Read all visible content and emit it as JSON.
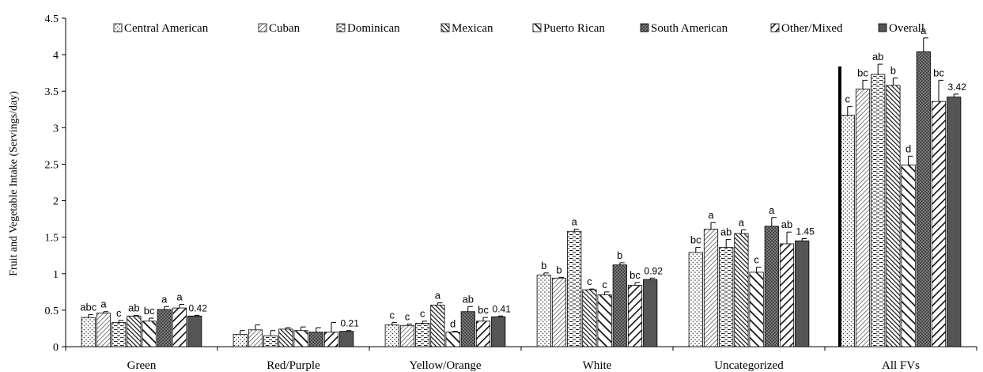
{
  "chart_data": {
    "type": "bar",
    "ylabel": "Fruit and Vegetable Intake (Servings/day)",
    "xlabel": "",
    "ylim": [
      0,
      4.5
    ],
    "yticks": [
      0,
      0.5,
      1,
      1.5,
      2,
      2.5,
      3,
      3.5,
      4,
      4.5
    ],
    "ytick_labels": [
      "0",
      "0.5",
      "1",
      "1.5",
      "2",
      "2.5",
      "3",
      "3.5",
      "4",
      "4.5"
    ],
    "grid": false,
    "legend_position": "top",
    "categories": [
      "Green",
      "Red/Purple",
      "Yellow/Orange",
      "White",
      "Uncategorized",
      "All FVs"
    ],
    "series": [
      {
        "name": "Central American",
        "pattern": "dots",
        "values": [
          0.4,
          0.17,
          0.3,
          0.98,
          1.29,
          3.17
        ],
        "errors": [
          0.04,
          0.05,
          0.03,
          0.03,
          0.07,
          0.12
        ],
        "labels": [
          "abc",
          "",
          "c",
          "b",
          "bc",
          "c"
        ]
      },
      {
        "name": "Cuban",
        "pattern": "diag-fine",
        "values": [
          0.46,
          0.23,
          0.29,
          0.94,
          1.61,
          3.53
        ],
        "errors": [
          0.02,
          0.07,
          0.02,
          0.01,
          0.09,
          0.12
        ],
        "labels": [
          "a",
          "",
          "c",
          "b",
          "a",
          "bc"
        ]
      },
      {
        "name": "Dominican",
        "pattern": "hdash",
        "values": [
          0.33,
          0.15,
          0.32,
          1.58,
          1.36,
          3.73
        ],
        "errors": [
          0.03,
          0.07,
          0.03,
          0.03,
          0.11,
          0.14
        ],
        "labels": [
          "c",
          "",
          "c",
          "a",
          "ab",
          "ab"
        ]
      },
      {
        "name": "Mexican",
        "pattern": "backdiag-dense",
        "values": [
          0.42,
          0.24,
          0.57,
          0.78,
          1.55,
          3.58
        ],
        "errors": [
          0.01,
          0.02,
          0.03,
          0.01,
          0.05,
          0.1
        ],
        "labels": [
          "ab",
          "",
          "a",
          "c",
          "a",
          "b"
        ]
      },
      {
        "name": "Puerto Rican",
        "pattern": "backdiag-wide",
        "values": [
          0.35,
          0.22,
          0.2,
          0.71,
          1.02,
          2.49
        ],
        "errors": [
          0.04,
          0.05,
          0.01,
          0.04,
          0.07,
          0.12
        ],
        "labels": [
          "bc",
          "",
          "d",
          "c",
          "c",
          "d"
        ]
      },
      {
        "name": "South American",
        "pattern": "crosshatch",
        "values": [
          0.51,
          0.2,
          0.48,
          1.12,
          1.65,
          4.04
        ],
        "errors": [
          0.04,
          0.06,
          0.07,
          0.03,
          0.12,
          0.19
        ],
        "labels": [
          "a",
          "",
          "ab",
          "b",
          "a",
          "a"
        ]
      },
      {
        "name": "Other/Mixed",
        "pattern": "diag-thick",
        "values": [
          0.53,
          0.2,
          0.35,
          0.84,
          1.41,
          3.36
        ],
        "errors": [
          0.05,
          0.13,
          0.05,
          0.04,
          0.16,
          0.29
        ],
        "labels": [
          "a",
          "",
          "bc",
          "bc",
          "ab",
          "bc"
        ]
      },
      {
        "name": "Overall",
        "pattern": "solid",
        "values": [
          0.42,
          0.21,
          0.41,
          0.92,
          1.45,
          3.42
        ],
        "errors": [
          0.01,
          0.01,
          0.01,
          0.02,
          0.03,
          0.04
        ],
        "labels": [
          "0.42",
          "0.21",
          "0.41",
          "0.92",
          "1.45",
          "3.42"
        ]
      }
    ]
  }
}
